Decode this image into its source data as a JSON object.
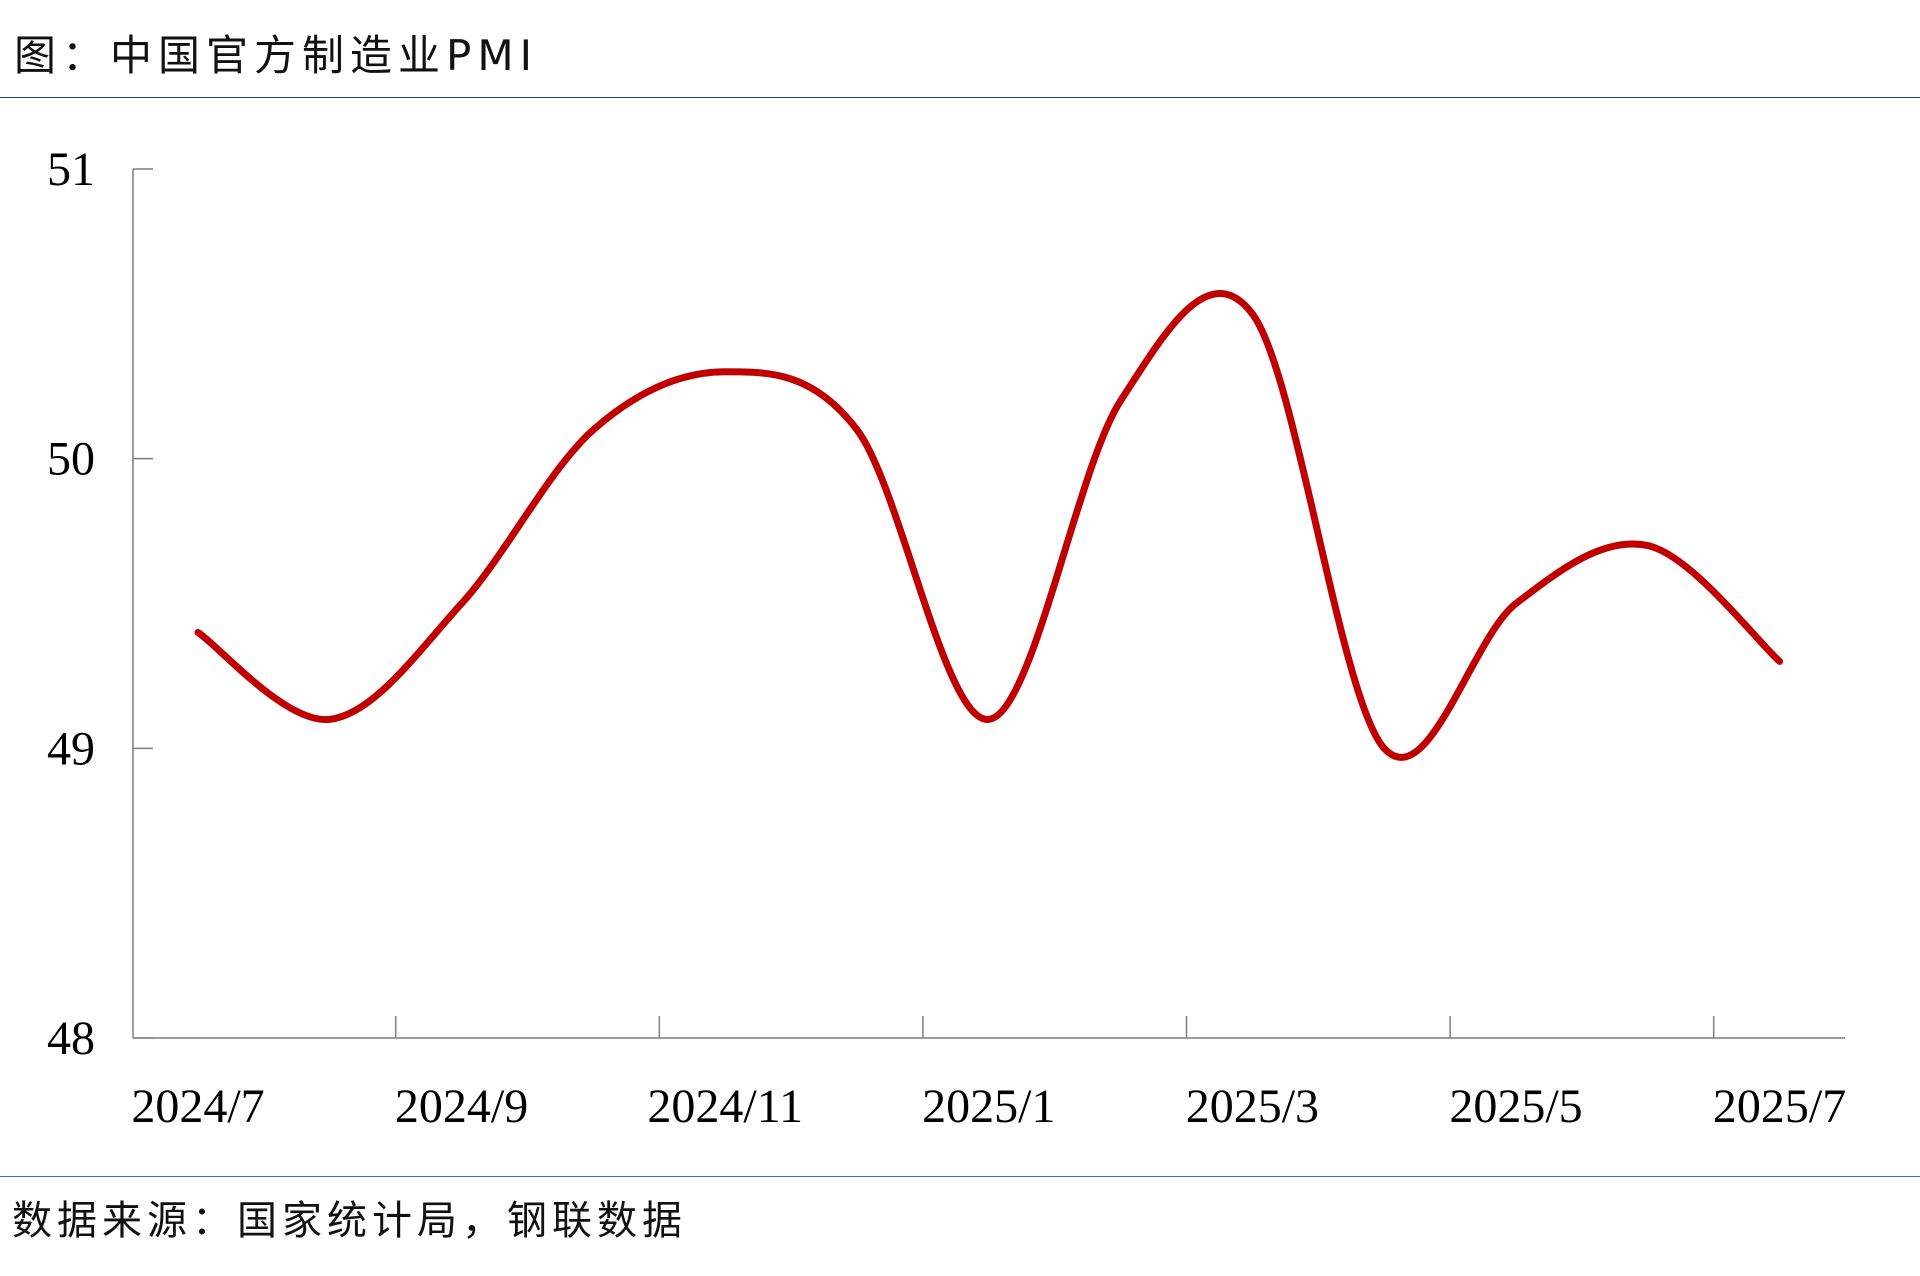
{
  "title": "图：中国官方制造业PMI",
  "source": "数据来源：国家统计局，钢联数据",
  "colors": {
    "line": "#C00000",
    "axis": "#7f7f7f",
    "rule": "#1f3f8f"
  },
  "chart_data": {
    "type": "line",
    "smooth": true,
    "x": [
      "2024/7",
      "2024/8",
      "2024/9",
      "2024/10",
      "2024/11",
      "2024/12",
      "2025/1",
      "2025/2",
      "2025/3",
      "2025/4",
      "2025/5",
      "2025/6",
      "2025/7"
    ],
    "values": [
      49.4,
      49.1,
      49.5,
      50.1,
      50.3,
      50.1,
      49.1,
      50.2,
      50.5,
      49.0,
      49.5,
      49.7,
      49.3
    ],
    "x_tick_labels": [
      "2024/7",
      "2024/9",
      "2024/11",
      "2025/1",
      "2025/3",
      "2025/5",
      "2025/7"
    ],
    "y_tick_labels": [
      "51",
      "50",
      "49",
      "48"
    ],
    "ylim": [
      48,
      51
    ],
    "grid": false,
    "legend": "none"
  }
}
